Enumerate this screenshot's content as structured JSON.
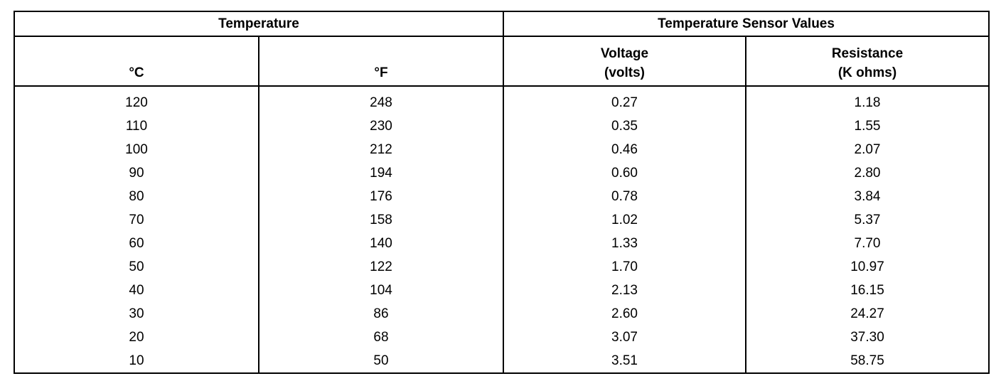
{
  "table": {
    "group_headers": [
      "Temperature",
      "Temperature Sensor Values"
    ],
    "column_headers": [
      "°C",
      "°F",
      "Voltage\n(volts)",
      "Resistance\n(K ohms)"
    ],
    "rows": [
      [
        "120",
        "248",
        "0.27",
        "1.18"
      ],
      [
        "110",
        "230",
        "0.35",
        "1.55"
      ],
      [
        "100",
        "212",
        "0.46",
        "2.07"
      ],
      [
        "90",
        "194",
        "0.60",
        "2.80"
      ],
      [
        "80",
        "176",
        "0.78",
        "3.84"
      ],
      [
        "70",
        "158",
        "1.02",
        "5.37"
      ],
      [
        "60",
        "140",
        "1.33",
        "7.70"
      ],
      [
        "50",
        "122",
        "1.70",
        "10.97"
      ],
      [
        "40",
        "104",
        "2.13",
        "16.15"
      ],
      [
        "30",
        "86",
        "2.60",
        "24.27"
      ],
      [
        "20",
        "68",
        "3.07",
        "37.30"
      ],
      [
        "10",
        "50",
        "3.51",
        "58.75"
      ]
    ]
  }
}
